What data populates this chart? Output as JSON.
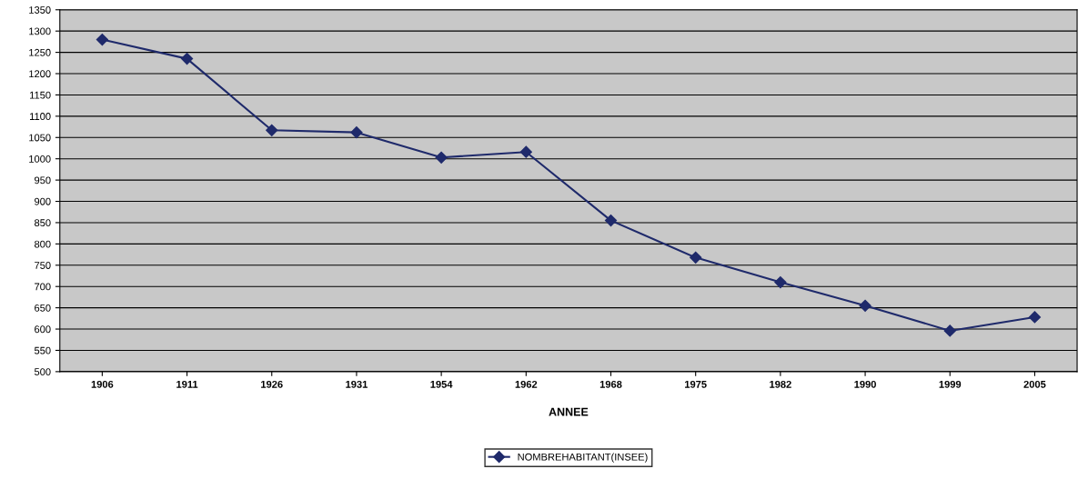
{
  "chart_data": {
    "type": "line",
    "xlabel": "ANNEE",
    "categories": [
      "1906",
      "1911",
      "1926",
      "1931",
      "1954",
      "1962",
      "1968",
      "1975",
      "1982",
      "1990",
      "1999",
      "2005"
    ],
    "series": [
      {
        "name": "NOMBREHABITANT(INSEE)",
        "color": "#1f2a6b",
        "values": [
          1280,
          1235,
          1067,
          1062,
          1003,
          1016,
          855,
          768,
          710,
          655,
          596,
          628
        ]
      }
    ],
    "ylim": [
      500,
      1350
    ],
    "yticks": [
      500,
      550,
      600,
      650,
      700,
      750,
      800,
      850,
      900,
      950,
      1000,
      1050,
      1100,
      1150,
      1200,
      1250,
      1300,
      1350
    ],
    "grid": "y",
    "legend": "bottom",
    "marker": "diamond",
    "line_style": "solid"
  }
}
